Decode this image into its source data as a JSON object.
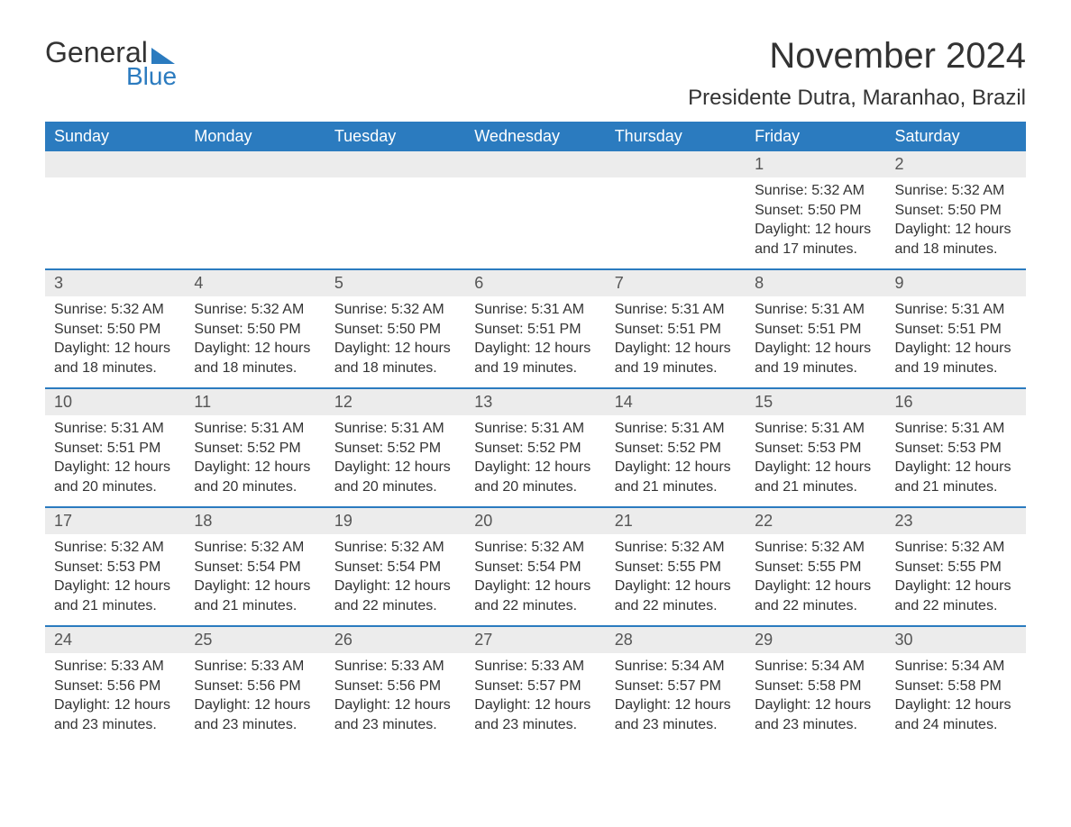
{
  "logo": {
    "line1": "General",
    "line2": "Blue",
    "text_color": "#333333",
    "accent_color": "#2b7bbf"
  },
  "header": {
    "month_title": "November 2024",
    "location": "Presidente Dutra, Maranhao, Brazil"
  },
  "colors": {
    "header_bg": "#2b7bbf",
    "header_text": "#ffffff",
    "daynum_bg": "#ececec",
    "body_text": "#333333",
    "page_bg": "#ffffff"
  },
  "calendar": {
    "day_labels": [
      "Sunday",
      "Monday",
      "Tuesday",
      "Wednesday",
      "Thursday",
      "Friday",
      "Saturday"
    ],
    "weeks": [
      [
        null,
        null,
        null,
        null,
        null,
        {
          "n": "1",
          "sunrise": "Sunrise: 5:32 AM",
          "sunset": "Sunset: 5:50 PM",
          "daylight": "Daylight: 12 hours and 17 minutes."
        },
        {
          "n": "2",
          "sunrise": "Sunrise: 5:32 AM",
          "sunset": "Sunset: 5:50 PM",
          "daylight": "Daylight: 12 hours and 18 minutes."
        }
      ],
      [
        {
          "n": "3",
          "sunrise": "Sunrise: 5:32 AM",
          "sunset": "Sunset: 5:50 PM",
          "daylight": "Daylight: 12 hours and 18 minutes."
        },
        {
          "n": "4",
          "sunrise": "Sunrise: 5:32 AM",
          "sunset": "Sunset: 5:50 PM",
          "daylight": "Daylight: 12 hours and 18 minutes."
        },
        {
          "n": "5",
          "sunrise": "Sunrise: 5:32 AM",
          "sunset": "Sunset: 5:50 PM",
          "daylight": "Daylight: 12 hours and 18 minutes."
        },
        {
          "n": "6",
          "sunrise": "Sunrise: 5:31 AM",
          "sunset": "Sunset: 5:51 PM",
          "daylight": "Daylight: 12 hours and 19 minutes."
        },
        {
          "n": "7",
          "sunrise": "Sunrise: 5:31 AM",
          "sunset": "Sunset: 5:51 PM",
          "daylight": "Daylight: 12 hours and 19 minutes."
        },
        {
          "n": "8",
          "sunrise": "Sunrise: 5:31 AM",
          "sunset": "Sunset: 5:51 PM",
          "daylight": "Daylight: 12 hours and 19 minutes."
        },
        {
          "n": "9",
          "sunrise": "Sunrise: 5:31 AM",
          "sunset": "Sunset: 5:51 PM",
          "daylight": "Daylight: 12 hours and 19 minutes."
        }
      ],
      [
        {
          "n": "10",
          "sunrise": "Sunrise: 5:31 AM",
          "sunset": "Sunset: 5:51 PM",
          "daylight": "Daylight: 12 hours and 20 minutes."
        },
        {
          "n": "11",
          "sunrise": "Sunrise: 5:31 AM",
          "sunset": "Sunset: 5:52 PM",
          "daylight": "Daylight: 12 hours and 20 minutes."
        },
        {
          "n": "12",
          "sunrise": "Sunrise: 5:31 AM",
          "sunset": "Sunset: 5:52 PM",
          "daylight": "Daylight: 12 hours and 20 minutes."
        },
        {
          "n": "13",
          "sunrise": "Sunrise: 5:31 AM",
          "sunset": "Sunset: 5:52 PM",
          "daylight": "Daylight: 12 hours and 20 minutes."
        },
        {
          "n": "14",
          "sunrise": "Sunrise: 5:31 AM",
          "sunset": "Sunset: 5:52 PM",
          "daylight": "Daylight: 12 hours and 21 minutes."
        },
        {
          "n": "15",
          "sunrise": "Sunrise: 5:31 AM",
          "sunset": "Sunset: 5:53 PM",
          "daylight": "Daylight: 12 hours and 21 minutes."
        },
        {
          "n": "16",
          "sunrise": "Sunrise: 5:31 AM",
          "sunset": "Sunset: 5:53 PM",
          "daylight": "Daylight: 12 hours and 21 minutes."
        }
      ],
      [
        {
          "n": "17",
          "sunrise": "Sunrise: 5:32 AM",
          "sunset": "Sunset: 5:53 PM",
          "daylight": "Daylight: 12 hours and 21 minutes."
        },
        {
          "n": "18",
          "sunrise": "Sunrise: 5:32 AM",
          "sunset": "Sunset: 5:54 PM",
          "daylight": "Daylight: 12 hours and 21 minutes."
        },
        {
          "n": "19",
          "sunrise": "Sunrise: 5:32 AM",
          "sunset": "Sunset: 5:54 PM",
          "daylight": "Daylight: 12 hours and 22 minutes."
        },
        {
          "n": "20",
          "sunrise": "Sunrise: 5:32 AM",
          "sunset": "Sunset: 5:54 PM",
          "daylight": "Daylight: 12 hours and 22 minutes."
        },
        {
          "n": "21",
          "sunrise": "Sunrise: 5:32 AM",
          "sunset": "Sunset: 5:55 PM",
          "daylight": "Daylight: 12 hours and 22 minutes."
        },
        {
          "n": "22",
          "sunrise": "Sunrise: 5:32 AM",
          "sunset": "Sunset: 5:55 PM",
          "daylight": "Daylight: 12 hours and 22 minutes."
        },
        {
          "n": "23",
          "sunrise": "Sunrise: 5:32 AM",
          "sunset": "Sunset: 5:55 PM",
          "daylight": "Daylight: 12 hours and 22 minutes."
        }
      ],
      [
        {
          "n": "24",
          "sunrise": "Sunrise: 5:33 AM",
          "sunset": "Sunset: 5:56 PM",
          "daylight": "Daylight: 12 hours and 23 minutes."
        },
        {
          "n": "25",
          "sunrise": "Sunrise: 5:33 AM",
          "sunset": "Sunset: 5:56 PM",
          "daylight": "Daylight: 12 hours and 23 minutes."
        },
        {
          "n": "26",
          "sunrise": "Sunrise: 5:33 AM",
          "sunset": "Sunset: 5:56 PM",
          "daylight": "Daylight: 12 hours and 23 minutes."
        },
        {
          "n": "27",
          "sunrise": "Sunrise: 5:33 AM",
          "sunset": "Sunset: 5:57 PM",
          "daylight": "Daylight: 12 hours and 23 minutes."
        },
        {
          "n": "28",
          "sunrise": "Sunrise: 5:34 AM",
          "sunset": "Sunset: 5:57 PM",
          "daylight": "Daylight: 12 hours and 23 minutes."
        },
        {
          "n": "29",
          "sunrise": "Sunrise: 5:34 AM",
          "sunset": "Sunset: 5:58 PM",
          "daylight": "Daylight: 12 hours and 23 minutes."
        },
        {
          "n": "30",
          "sunrise": "Sunrise: 5:34 AM",
          "sunset": "Sunset: 5:58 PM",
          "daylight": "Daylight: 12 hours and 24 minutes."
        }
      ]
    ]
  }
}
